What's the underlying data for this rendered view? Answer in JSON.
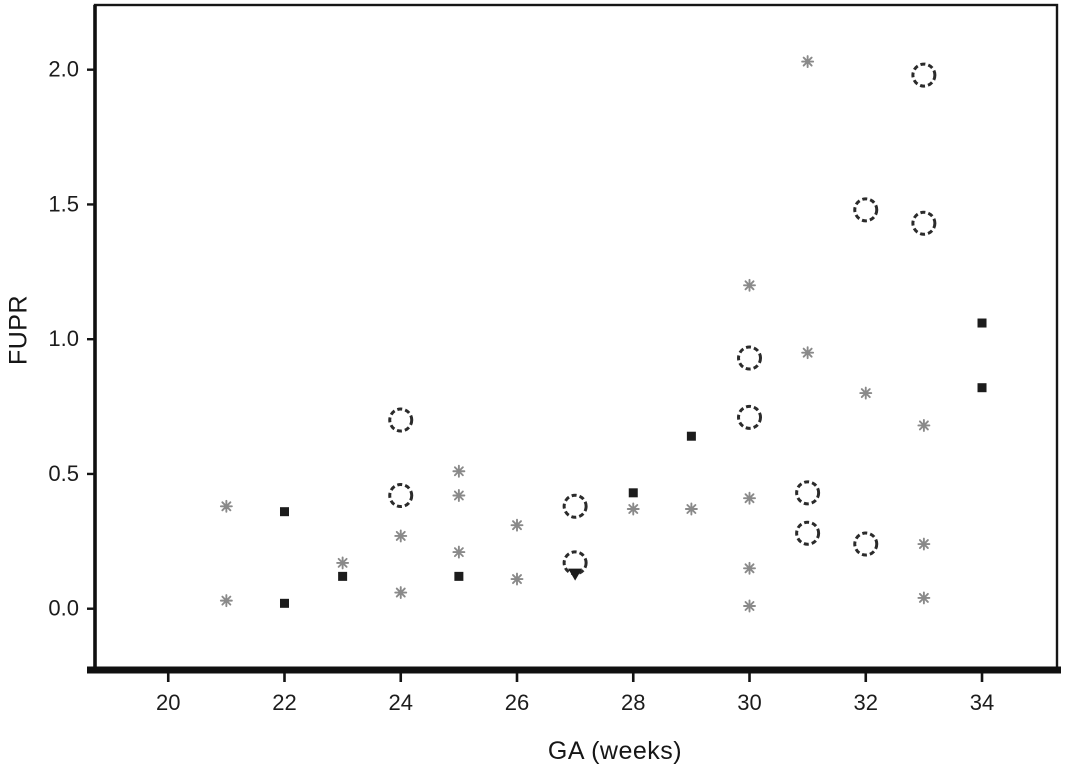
{
  "chart_data": {
    "type": "scatter",
    "title": "",
    "xlabel": "GA (weeks)",
    "ylabel": "FUPR",
    "xlim": [
      18.74,
      35.29
    ],
    "ylim": [
      -0.22,
      2.24
    ],
    "grid": false,
    "legend": "none",
    "xticks": [
      {
        "label": "20",
        "value": 20
      },
      {
        "label": "22",
        "value": 22
      },
      {
        "label": "24",
        "value": 24
      },
      {
        "label": "26",
        "value": 26
      },
      {
        "label": "28",
        "value": 28
      },
      {
        "label": "30",
        "value": 30
      },
      {
        "label": "32",
        "value": 32
      },
      {
        "label": "34",
        "value": 34
      }
    ],
    "yticks": [
      {
        "label": "0.0",
        "value": 0.0
      },
      {
        "label": "0.5",
        "value": 0.5
      },
      {
        "label": "1.0",
        "value": 1.0
      },
      {
        "label": "1.5",
        "value": 1.5
      },
      {
        "label": "2.0",
        "value": 2.0
      }
    ],
    "series": [
      {
        "name": "open-circle-markers",
        "marker": "circle",
        "color": "#2b2b2b",
        "points": [
          [
            24,
            0.7
          ],
          [
            24,
            0.42
          ],
          [
            27,
            0.38
          ],
          [
            27,
            0.17
          ],
          [
            30,
            0.93
          ],
          [
            30,
            0.71
          ],
          [
            31,
            0.43
          ],
          [
            31,
            0.28
          ],
          [
            32,
            1.48
          ],
          [
            32,
            0.24
          ],
          [
            33,
            1.98
          ],
          [
            33,
            1.43
          ]
        ]
      },
      {
        "name": "filled-square-markers",
        "marker": "square",
        "color": "#1c1c1c",
        "points": [
          [
            22,
            0.36
          ],
          [
            22,
            0.02
          ],
          [
            23,
            0.12
          ],
          [
            25,
            0.12
          ],
          [
            28,
            0.43
          ],
          [
            29,
            0.64
          ],
          [
            34,
            1.06
          ],
          [
            34,
            0.82
          ]
        ]
      },
      {
        "name": "gray-star-markers",
        "marker": "star",
        "color": "#8a8a8a",
        "points": [
          [
            21,
            0.38
          ],
          [
            21,
            0.03
          ],
          [
            23,
            0.17
          ],
          [
            24,
            0.27
          ],
          [
            24,
            0.06
          ],
          [
            25,
            0.51
          ],
          [
            25,
            0.42
          ],
          [
            25,
            0.21
          ],
          [
            26,
            0.31
          ],
          [
            26,
            0.11
          ],
          [
            28,
            0.37
          ],
          [
            29,
            0.37
          ],
          [
            30,
            1.2
          ],
          [
            30,
            0.41
          ],
          [
            30,
            0.15
          ],
          [
            30,
            0.01
          ],
          [
            31,
            2.03
          ],
          [
            31,
            0.95
          ],
          [
            32,
            0.8
          ],
          [
            33,
            0.68
          ],
          [
            33,
            0.24
          ],
          [
            33,
            0.04
          ]
        ]
      },
      {
        "name": "filled-triangle-markers",
        "marker": "triangle",
        "color": "#1c1c1c",
        "points": [
          [
            27,
            0.13
          ]
        ]
      }
    ]
  }
}
